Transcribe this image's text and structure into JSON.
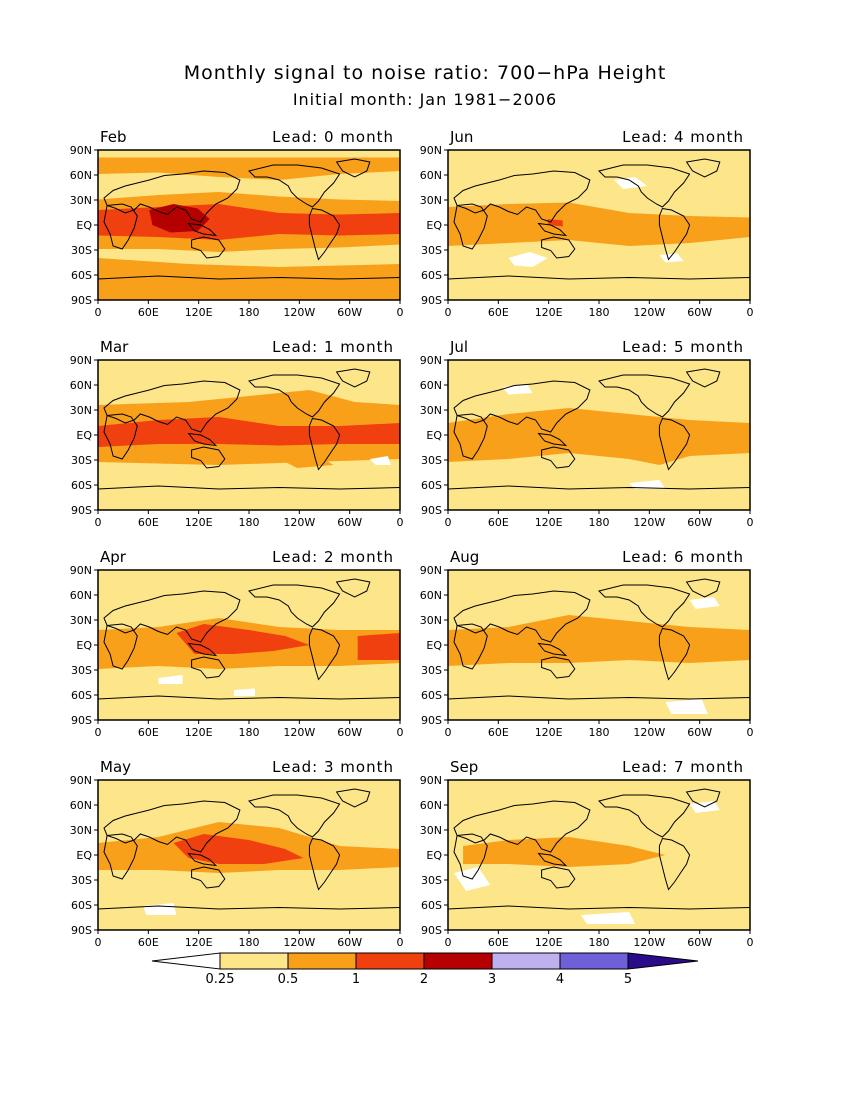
{
  "title": "Monthly signal to noise ratio: 700−hPa Height",
  "subtitle": "Initial month: Jan 1981−2006",
  "lat_ticks": [
    "90N",
    "60N",
    "30N",
    "EQ",
    "30S",
    "60S",
    "90S"
  ],
  "lon_ticks": [
    "0",
    "60E",
    "120E",
    "180",
    "120W",
    "60W",
    "0"
  ],
  "colors": {
    "white": "#ffffff",
    "pale_yellow": "#fde58a",
    "orange": "#f8a01a",
    "red_orange": "#f04010",
    "dark_red": "#b40000",
    "lavender": "#c0b0f0",
    "purple": "#7060d8",
    "navy": "#2a0b8a"
  },
  "colorbar": {
    "labels": [
      "0.25",
      "0.5",
      "1",
      "2",
      "3",
      "4",
      "5"
    ],
    "thresholds": [
      0.25,
      0.5,
      1,
      2,
      3,
      4,
      5
    ]
  },
  "panels": [
    {
      "month": "Feb",
      "lead": "Lead: 0 month"
    },
    {
      "month": "Jun",
      "lead": "Lead: 4 month"
    },
    {
      "month": "Mar",
      "lead": "Lead: 1 month"
    },
    {
      "month": "Jul",
      "lead": "Lead: 5 month"
    },
    {
      "month": "Apr",
      "lead": "Lead: 2 month"
    },
    {
      "month": "Aug",
      "lead": "Lead: 6 month"
    },
    {
      "month": "May",
      "lead": "Lead: 3 month"
    },
    {
      "month": "Sep",
      "lead": "Lead: 7 month"
    }
  ],
  "chart_data": {
    "type": "heatmap",
    "title": "Monthly signal to noise ratio: 700−hPa Height",
    "subtitle": "Initial month: Jan 1981−2006",
    "x_range": [
      "0",
      "0"
    ],
    "y_range": [
      "90S",
      "90N"
    ],
    "color_levels": [
      0.25,
      0.5,
      1,
      2,
      3,
      4,
      5
    ],
    "panels": [
      {
        "month": "Feb",
        "lead": 0,
        "tropical_max_level": 3,
        "feature": "strongest; 2–3 over Maritime Continent, 1–2 tropical band"
      },
      {
        "month": "Jun",
        "lead": 4,
        "tropical_max_level": 2,
        "feature": "0.5–1 tropical band, small 1–2 near 150E"
      },
      {
        "month": "Mar",
        "lead": 1,
        "tropical_max_level": 2,
        "feature": "1–2 continuous tropical band"
      },
      {
        "month": "Jul",
        "lead": 5,
        "tropical_max_level": 1,
        "feature": "0.5–1 tropical band"
      },
      {
        "month": "Apr",
        "lead": 2,
        "tropical_max_level": 2,
        "feature": "1–2 over western Pacific and eastern Pacific"
      },
      {
        "month": "Aug",
        "lead": 6,
        "tropical_max_level": 1,
        "feature": "0.5–1 tropical band"
      },
      {
        "month": "May",
        "lead": 3,
        "tropical_max_level": 2,
        "feature": "1–2 over Maritime Continent / western Pacific"
      },
      {
        "month": "Sep",
        "lead": 7,
        "tropical_max_level": 1,
        "feature": "0.5–1 Indian Ocean to central Pacific"
      }
    ]
  }
}
